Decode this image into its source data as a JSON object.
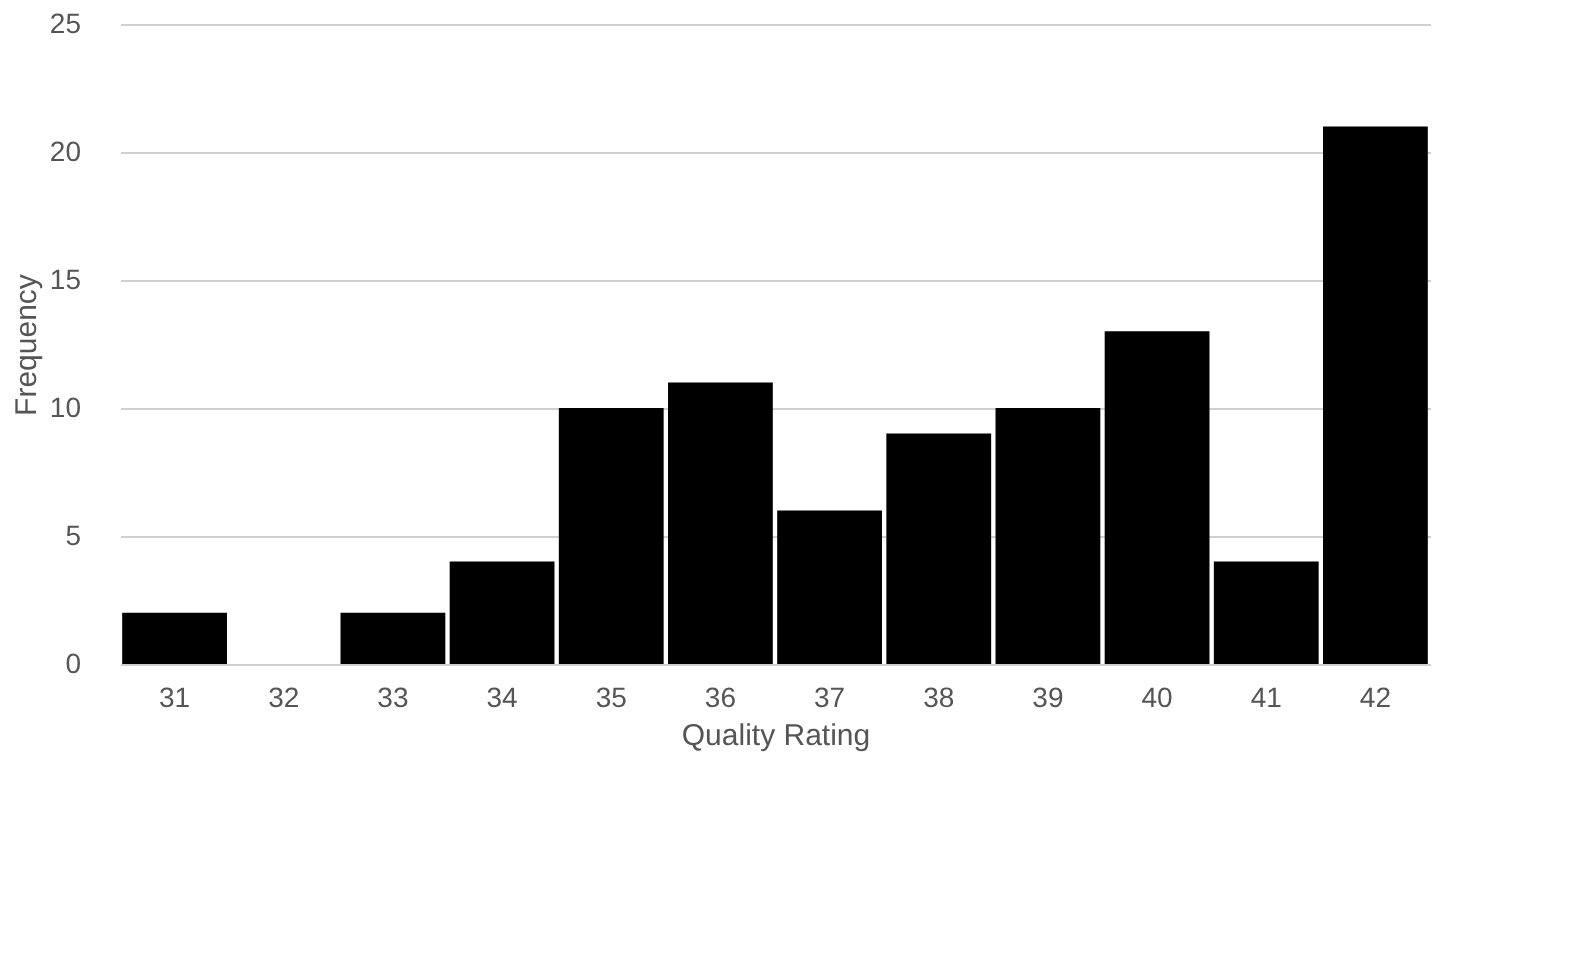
{
  "chart_data": {
    "type": "bar",
    "xlabel": "Quality Rating",
    "ylabel": "Frequency",
    "categories": [
      "31",
      "32",
      "33",
      "34",
      "35",
      "36",
      "37",
      "38",
      "39",
      "40",
      "41",
      "42"
    ],
    "values": [
      2,
      0,
      2,
      4,
      10,
      11,
      6,
      9,
      10,
      13,
      4,
      21
    ],
    "color": "#000000",
    "ylim": [
      0,
      25
    ],
    "yticks": [
      0,
      5,
      10,
      15,
      20,
      25
    ],
    "grid": "y"
  }
}
